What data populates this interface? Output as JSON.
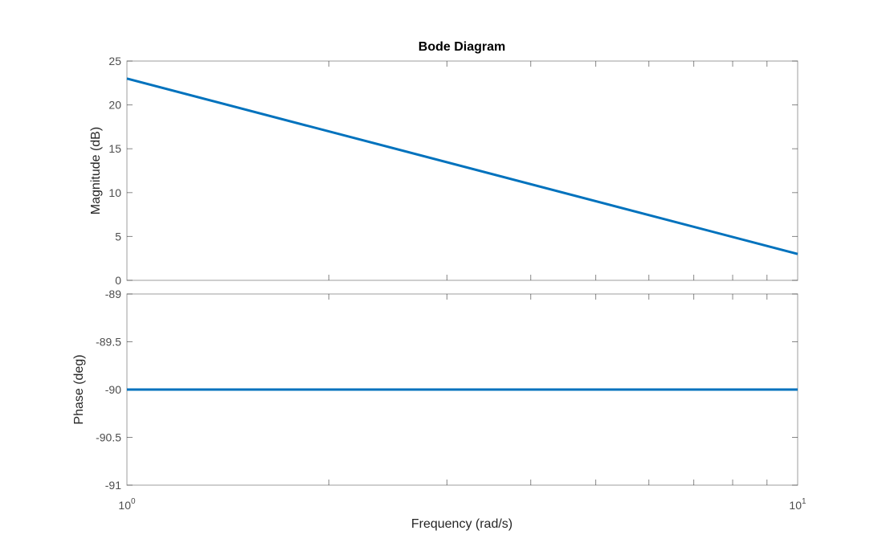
{
  "chart_data": {
    "type": "line",
    "title": "Bode Diagram",
    "xlabel": "Frequency  (rad/s)",
    "xscale": "log",
    "xlim": [
      1,
      10
    ],
    "x_tick_labels": [
      {
        "base": "10",
        "exp": "0",
        "value": 1
      },
      {
        "base": "10",
        "exp": "1",
        "value": 10
      }
    ],
    "line_color": "#0072BD",
    "grid": false,
    "panels": [
      {
        "key": "magnitude",
        "ylabel": "Magnitude (dB)",
        "ylim": [
          0,
          25
        ],
        "yticks": [
          0,
          5,
          10,
          15,
          20,
          25
        ],
        "ytick_labels": [
          "0",
          "5",
          "10",
          "15",
          "20",
          "25"
        ],
        "series": [
          {
            "x": [
              1,
              10
            ],
            "values": [
              23,
              3
            ]
          }
        ]
      },
      {
        "key": "phase",
        "ylabel": "Phase (deg)",
        "ylim": [
          -91,
          -89
        ],
        "yticks": [
          -91,
          -90.5,
          -90,
          -89.5,
          -89
        ],
        "ytick_labels": [
          "-91",
          "-90.5",
          "-90",
          "-89.5",
          "-89"
        ],
        "series": [
          {
            "x": [
              1,
              10
            ],
            "values": [
              -90,
              -90
            ]
          }
        ]
      }
    ]
  }
}
